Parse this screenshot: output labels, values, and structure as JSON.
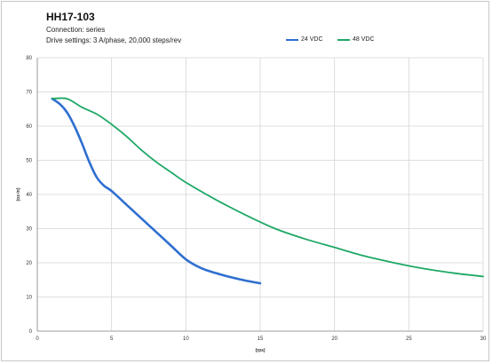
{
  "chart_data": {
    "type": "line",
    "title": "HH17-103",
    "subtitle": [
      "Connection: series",
      "Drive settings: 3 A/phase, 20,000 steps/rev"
    ],
    "xlabel": "(rps)",
    "ylabel": "(oz-in)",
    "xlim": [
      0,
      30
    ],
    "ylim": [
      0,
      80
    ],
    "xticks": [
      "0",
      "5",
      "10",
      "15",
      "20",
      "25",
      "30"
    ],
    "yticks": [
      "0",
      "10",
      "20",
      "30",
      "40",
      "50",
      "60",
      "70",
      "80"
    ],
    "grid": true,
    "legend": "top-right",
    "series": [
      {
        "name": "24 VDC",
        "color": "#2f6fd0",
        "x": [
          1,
          1.5,
          2,
          2.5,
          3,
          3.5,
          4,
          4.5,
          5,
          6,
          7,
          8,
          9,
          10,
          11,
          12,
          13,
          14,
          15
        ],
        "y": [
          68,
          66.5,
          64,
          60,
          55,
          49.5,
          45,
          42.5,
          41,
          37,
          33,
          29,
          25,
          21,
          18.5,
          17,
          15.8,
          14.8,
          14
        ]
      },
      {
        "name": "48 VDC",
        "color": "#1ea866",
        "x": [
          1,
          2,
          3,
          4,
          5,
          6,
          7,
          8,
          9,
          10,
          12,
          14,
          16,
          18,
          20,
          22,
          24,
          26,
          28,
          30
        ],
        "y": [
          68,
          68,
          65.5,
          63.5,
          60.5,
          57,
          53,
          49.5,
          46.5,
          43.5,
          38.5,
          34,
          30,
          27,
          24.5,
          22,
          20,
          18.3,
          17,
          16
        ]
      }
    ]
  }
}
